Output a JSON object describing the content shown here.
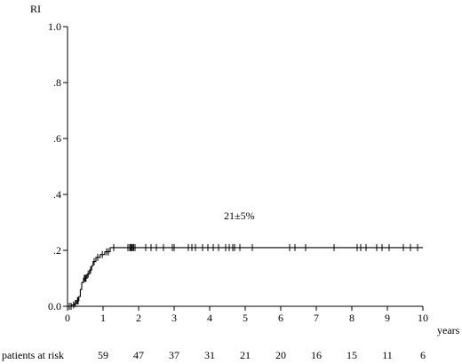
{
  "chart_data": {
    "type": "line",
    "title": "",
    "xlabel": "years",
    "ylabel": "RI",
    "xlim": [
      0,
      10
    ],
    "ylim": [
      0,
      1
    ],
    "x_ticks": [
      0,
      1,
      2,
      3,
      4,
      5,
      6,
      7,
      8,
      9,
      10
    ],
    "x_tick_labels": [
      "0",
      "1",
      "2",
      "3",
      "4",
      "5",
      "6",
      "7",
      "8",
      "9",
      "10"
    ],
    "y_ticks": [
      0,
      0.2,
      0.4,
      0.6,
      0.8,
      1.0
    ],
    "y_tick_labels": [
      "0.0",
      ".2",
      ".4",
      ".6",
      ".8",
      "1.0"
    ],
    "grid": false,
    "annotation": "21±5%",
    "series": [
      {
        "step_curve": [
          [
            0,
            0
          ],
          [
            0.12,
            0
          ],
          [
            0.12,
            0.005
          ],
          [
            0.2,
            0.005
          ],
          [
            0.2,
            0.01
          ],
          [
            0.25,
            0.01
          ],
          [
            0.25,
            0.02
          ],
          [
            0.32,
            0.02
          ],
          [
            0.32,
            0.035
          ],
          [
            0.36,
            0.035
          ],
          [
            0.36,
            0.06
          ],
          [
            0.4,
            0.06
          ],
          [
            0.4,
            0.085
          ],
          [
            0.45,
            0.085
          ],
          [
            0.45,
            0.1
          ],
          [
            0.55,
            0.1
          ],
          [
            0.55,
            0.115
          ],
          [
            0.62,
            0.115
          ],
          [
            0.62,
            0.13
          ],
          [
            0.68,
            0.13
          ],
          [
            0.68,
            0.145
          ],
          [
            0.72,
            0.145
          ],
          [
            0.72,
            0.16
          ],
          [
            0.8,
            0.16
          ],
          [
            0.8,
            0.175
          ],
          [
            0.92,
            0.175
          ],
          [
            0.92,
            0.185
          ],
          [
            1.05,
            0.185
          ],
          [
            1.05,
            0.195
          ],
          [
            1.2,
            0.195
          ],
          [
            1.2,
            0.21
          ],
          [
            10.0,
            0.21
          ]
        ],
        "censor_marks": [
          [
            0.05,
            0
          ],
          [
            0.1,
            0
          ],
          [
            0.17,
            0.005
          ],
          [
            0.22,
            0.01
          ],
          [
            0.28,
            0.02
          ],
          [
            0.3,
            0.02
          ],
          [
            0.47,
            0.1
          ],
          [
            0.5,
            0.1
          ],
          [
            0.52,
            0.1
          ],
          [
            0.58,
            0.115
          ],
          [
            0.65,
            0.13
          ],
          [
            0.75,
            0.16
          ],
          [
            0.85,
            0.175
          ],
          [
            0.98,
            0.185
          ],
          [
            1.1,
            0.195
          ],
          [
            1.15,
            0.195
          ],
          [
            1.3,
            0.21
          ],
          [
            1.7,
            0.21
          ],
          [
            1.75,
            0.21
          ],
          [
            1.78,
            0.21
          ],
          [
            1.8,
            0.21
          ],
          [
            1.83,
            0.21
          ],
          [
            1.86,
            0.21
          ],
          [
            1.9,
            0.21
          ],
          [
            2.2,
            0.21
          ],
          [
            2.35,
            0.21
          ],
          [
            2.5,
            0.21
          ],
          [
            2.7,
            0.21
          ],
          [
            2.95,
            0.21
          ],
          [
            3.0,
            0.21
          ],
          [
            3.4,
            0.21
          ],
          [
            3.5,
            0.21
          ],
          [
            3.6,
            0.21
          ],
          [
            3.8,
            0.21
          ],
          [
            3.95,
            0.21
          ],
          [
            4.1,
            0.21
          ],
          [
            4.25,
            0.21
          ],
          [
            4.45,
            0.21
          ],
          [
            4.55,
            0.21
          ],
          [
            4.65,
            0.21
          ],
          [
            4.7,
            0.21
          ],
          [
            4.85,
            0.21
          ],
          [
            5.2,
            0.21
          ],
          [
            6.25,
            0.21
          ],
          [
            6.4,
            0.21
          ],
          [
            6.7,
            0.21
          ],
          [
            7.5,
            0.21
          ],
          [
            8.15,
            0.21
          ],
          [
            8.25,
            0.21
          ],
          [
            8.4,
            0.21
          ],
          [
            8.7,
            0.21
          ],
          [
            8.85,
            0.21
          ],
          [
            9.05,
            0.21
          ],
          [
            9.45,
            0.21
          ],
          [
            9.65,
            0.21
          ],
          [
            9.85,
            0.21
          ]
        ]
      }
    ],
    "at_risk": {
      "label": "patients at risk",
      "x": [
        1,
        2,
        3,
        4,
        5,
        6,
        7,
        8,
        9,
        10
      ],
      "counts": [
        "59",
        "47",
        "37",
        "31",
        "21",
        "20",
        "16",
        "15",
        "11",
        "6"
      ]
    }
  }
}
